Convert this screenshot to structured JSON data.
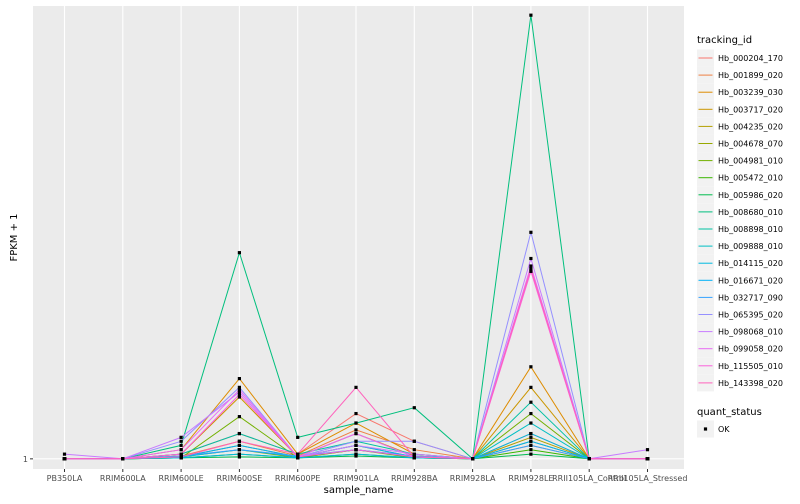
{
  "chart_data": {
    "type": "line",
    "title": "",
    "xlabel": "sample_name",
    "ylabel": "FPKM + 1",
    "y_scale": "log",
    "grid": true,
    "legend_position": "right",
    "categories": [
      "PB350LA",
      "RRIM600LA",
      "RRIM600LE",
      "RRIM600SE",
      "RRIM600PE",
      "RRIM901LA",
      "RRIM928BA",
      "RRIM928LA",
      "RRIM928LE",
      "RRII105LA_Control",
      "RRII105LA_Stressed"
    ],
    "y_ticks": [
      {
        "value": 1,
        "label": "1"
      }
    ],
    "ylim": [
      0.9,
      110
    ],
    "legend_title": "tracking_id",
    "series": [
      {
        "name": "Hb_000204_170",
        "color": "#F8766D",
        "values": [
          1,
          1,
          1.05,
          1.3,
          1.05,
          1.6,
          1.2,
          1,
          1.3,
          1,
          1
        ]
      },
      {
        "name": "Hb_001899_020",
        "color": "#EE8043",
        "values": [
          1,
          1,
          1.03,
          1.2,
          1.03,
          1.35,
          1.1,
          1,
          1.15,
          1,
          1
        ]
      },
      {
        "name": "Hb_003239_030",
        "color": "#DE8C00",
        "values": [
          1,
          1,
          1.1,
          2.3,
          1.05,
          1.45,
          1.05,
          1,
          2.6,
          1,
          1
        ]
      },
      {
        "name": "Hb_003717_020",
        "color": "#CB9600",
        "values": [
          1,
          1,
          1.05,
          1.9,
          1.02,
          1.3,
          1.03,
          1,
          2.1,
          1,
          1
        ]
      },
      {
        "name": "Hb_004235_020",
        "color": "#B39F00",
        "values": [
          1,
          1,
          1.02,
          1.15,
          1.02,
          1.15,
          1.02,
          1,
          1.25,
          1,
          1
        ]
      },
      {
        "name": "Hb_004678_070",
        "color": "#97A800",
        "values": [
          1,
          1,
          1.02,
          1.1,
          1.01,
          1.1,
          1.02,
          1,
          1.2,
          1,
          1
        ]
      },
      {
        "name": "Hb_004981_010",
        "color": "#72B000",
        "values": [
          1,
          1,
          1.01,
          1.55,
          1.01,
          1.1,
          1.01,
          1,
          1.6,
          1,
          1
        ]
      },
      {
        "name": "Hb_005472_010",
        "color": "#39B600",
        "values": [
          1,
          1,
          1.01,
          1.05,
          1.01,
          1.05,
          1.01,
          1,
          1.1,
          1,
          1
        ]
      },
      {
        "name": "Hb_005986_020",
        "color": "#00BB4E",
        "values": [
          1,
          1,
          1.01,
          1.02,
          1.01,
          1.03,
          1.01,
          1,
          1.05,
          1,
          1
        ]
      },
      {
        "name": "Hb_008680_010",
        "color": "#00BF7D",
        "values": [
          1,
          1,
          1.15,
          8.5,
          1.25,
          1.45,
          1.7,
          1,
          100,
          1,
          1
        ]
      },
      {
        "name": "Hb_008898_010",
        "color": "#00C1A3",
        "values": [
          1,
          1,
          1.05,
          1.3,
          1.05,
          1.2,
          1.05,
          1,
          1.8,
          1,
          1
        ]
      },
      {
        "name": "Hb_009888_010",
        "color": "#00BFC4",
        "values": [
          1,
          1,
          1.02,
          1.1,
          1.02,
          1.1,
          1.02,
          1,
          1.45,
          1,
          1
        ]
      },
      {
        "name": "Hb_014115_020",
        "color": "#00BAE0",
        "values": [
          1,
          1,
          1.01,
          1.05,
          1.01,
          1.05,
          1.01,
          1,
          1.3,
          1,
          1
        ]
      },
      {
        "name": "Hb_016671_020",
        "color": "#00B0F6",
        "values": [
          1,
          1,
          1.02,
          1.15,
          1.02,
          1.15,
          1.02,
          1,
          1.2,
          1,
          1
        ]
      },
      {
        "name": "Hb_032717_090",
        "color": "#35A2FF",
        "values": [
          1,
          1,
          1.03,
          1.1,
          1.03,
          1.1,
          1.03,
          1,
          1.15,
          1,
          1
        ]
      },
      {
        "name": "Hb_065395_020",
        "color": "#9590FF",
        "values": [
          1,
          1,
          1.2,
          2.1,
          1.02,
          1.2,
          1.2,
          1,
          10.5,
          1,
          1
        ]
      },
      {
        "name": "Hb_098068_010",
        "color": "#C77CFF",
        "values": [
          1.05,
          1,
          1.25,
          2.0,
          1.02,
          1.15,
          1.05,
          1,
          8.0,
          1,
          1.1
        ]
      },
      {
        "name": "Hb_099058_020",
        "color": "#E76BF3",
        "values": [
          1,
          1,
          1.1,
          2.05,
          1.02,
          1.3,
          1.02,
          1,
          7.4,
          1,
          1
        ]
      },
      {
        "name": "Hb_115505_010",
        "color": "#FA62DB",
        "values": [
          1,
          1,
          1.05,
          1.95,
          1.02,
          1.1,
          1.02,
          1,
          7.0,
          1,
          1
        ]
      },
      {
        "name": "Hb_143398_020",
        "color": "#FF62BC",
        "values": [
          1,
          1,
          1.02,
          1.2,
          1.05,
          2.1,
          1.02,
          1,
          7.2,
          1,
          1
        ]
      }
    ],
    "shape_legend": {
      "title": "quant_status",
      "items": [
        "OK"
      ]
    }
  }
}
